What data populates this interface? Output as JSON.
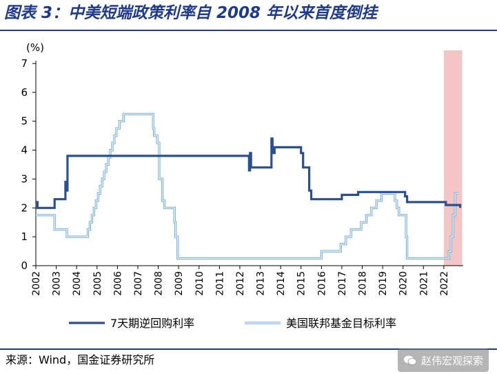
{
  "header": {
    "title": "图表 3：中美短端政策利率自 2008 年以来首度倒挂"
  },
  "colors": {
    "title": "#1f3a8a",
    "rule": "#1f3a8a",
    "china_series": "#2c4f8f",
    "us_series": "#6fa8dc",
    "us_series_inner": "#ffffff",
    "highlight": "#f3c6c6",
    "axis": "#000000"
  },
  "footer": {
    "source": "来源：Wind，国金证券研究所",
    "watermark": "赵伟宏观探索"
  },
  "chart_data": {
    "type": "line",
    "title": "",
    "xlabel": "",
    "ylabel": "(%)",
    "xlim": [
      2002,
      2022.95
    ],
    "ylim": [
      0,
      7
    ],
    "yticks": [
      0,
      1,
      2,
      3,
      4,
      5,
      6,
      7
    ],
    "xticks": [
      "2002",
      "2003",
      "2004",
      "2005",
      "2006",
      "2007",
      "2008",
      "2009",
      "2010",
      "2011",
      "2012",
      "2013",
      "2014",
      "2015",
      "2016",
      "2017",
      "2018",
      "2019",
      "2020",
      "2021",
      "2022"
    ],
    "grid": false,
    "legend_position": "bottom",
    "highlight_range": [
      2022.0,
      2022.9
    ],
    "series": [
      {
        "name": "7天期逆回购利率",
        "style": "thick",
        "points": [
          [
            2002.0,
            2.2
          ],
          [
            2002.08,
            2.0
          ],
          [
            2002.9,
            2.0
          ],
          [
            2002.92,
            2.3
          ],
          [
            2003.4,
            2.3
          ],
          [
            2003.45,
            2.9
          ],
          [
            2003.5,
            2.6
          ],
          [
            2003.55,
            3.8
          ],
          [
            2012.4,
            3.8
          ],
          [
            2012.45,
            3.3
          ],
          [
            2012.5,
            3.9
          ],
          [
            2012.55,
            3.4
          ],
          [
            2013.5,
            3.4
          ],
          [
            2013.55,
            4.4
          ],
          [
            2013.6,
            3.9
          ],
          [
            2013.7,
            4.1
          ],
          [
            2014.9,
            4.1
          ],
          [
            2015.0,
            3.9
          ],
          [
            2015.1,
            3.4
          ],
          [
            2015.3,
            3.4
          ],
          [
            2015.4,
            2.6
          ],
          [
            2015.5,
            2.3
          ],
          [
            2016.9,
            2.3
          ],
          [
            2017.0,
            2.45
          ],
          [
            2017.7,
            2.45
          ],
          [
            2017.8,
            2.55
          ],
          [
            2019.9,
            2.55
          ],
          [
            2020.1,
            2.4
          ],
          [
            2020.2,
            2.2
          ],
          [
            2021.9,
            2.2
          ],
          [
            2022.1,
            2.1
          ],
          [
            2022.65,
            2.1
          ],
          [
            2022.8,
            2.0
          ]
        ]
      },
      {
        "name": "美国联邦基金目标利率",
        "style": "double",
        "points": [
          [
            2002.0,
            1.75
          ],
          [
            2002.9,
            1.75
          ],
          [
            2002.92,
            1.25
          ],
          [
            2003.5,
            1.25
          ],
          [
            2003.52,
            1.0
          ],
          [
            2004.5,
            1.0
          ],
          [
            2004.55,
            1.25
          ],
          [
            2004.65,
            1.5
          ],
          [
            2004.75,
            1.75
          ],
          [
            2004.85,
            2.0
          ],
          [
            2004.95,
            2.25
          ],
          [
            2005.05,
            2.5
          ],
          [
            2005.15,
            2.75
          ],
          [
            2005.25,
            3.0
          ],
          [
            2005.35,
            3.25
          ],
          [
            2005.45,
            3.5
          ],
          [
            2005.55,
            3.75
          ],
          [
            2005.65,
            4.0
          ],
          [
            2005.75,
            4.25
          ],
          [
            2005.85,
            4.5
          ],
          [
            2005.95,
            4.75
          ],
          [
            2006.1,
            5.0
          ],
          [
            2006.3,
            5.25
          ],
          [
            2007.7,
            5.25
          ],
          [
            2007.75,
            4.75
          ],
          [
            2007.8,
            4.5
          ],
          [
            2007.95,
            4.25
          ],
          [
            2008.05,
            3.0
          ],
          [
            2008.2,
            2.25
          ],
          [
            2008.3,
            2.0
          ],
          [
            2008.8,
            1.5
          ],
          [
            2008.85,
            1.0
          ],
          [
            2008.95,
            0.25
          ],
          [
            2015.95,
            0.25
          ],
          [
            2016.0,
            0.5
          ],
          [
            2016.95,
            0.75
          ],
          [
            2017.2,
            1.0
          ],
          [
            2017.45,
            1.25
          ],
          [
            2017.95,
            1.5
          ],
          [
            2018.2,
            1.75
          ],
          [
            2018.45,
            2.0
          ],
          [
            2018.7,
            2.25
          ],
          [
            2018.95,
            2.5
          ],
          [
            2019.55,
            2.5
          ],
          [
            2019.6,
            2.25
          ],
          [
            2019.7,
            2.0
          ],
          [
            2019.8,
            1.75
          ],
          [
            2020.15,
            1.0
          ],
          [
            2020.2,
            0.25
          ],
          [
            2022.2,
            0.25
          ],
          [
            2022.25,
            0.5
          ],
          [
            2022.35,
            1.0
          ],
          [
            2022.45,
            1.75
          ],
          [
            2022.55,
            2.5
          ],
          [
            2022.7,
            2.5
          ]
        ]
      }
    ]
  }
}
